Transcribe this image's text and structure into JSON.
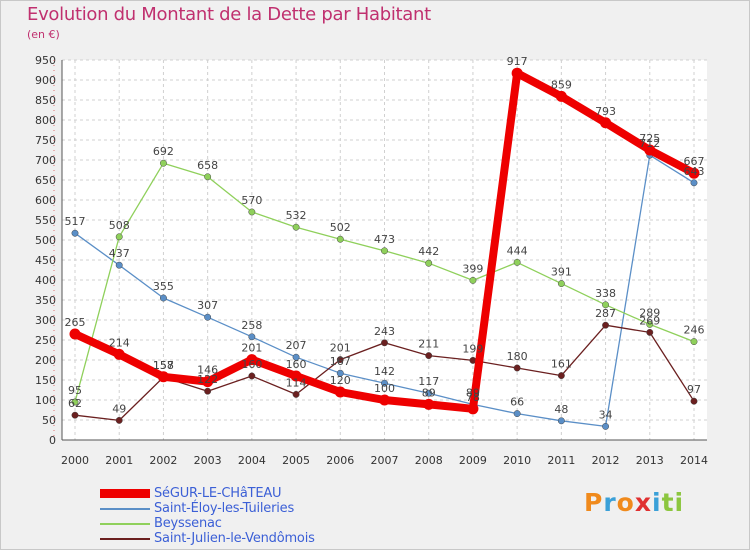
{
  "header": {
    "title": "Evolution du Montant de la Dette par Habitant",
    "subtitle": "(en €)"
  },
  "logo": {
    "letters": [
      "P",
      "r",
      "o",
      "x",
      "i",
      "t",
      "i"
    ],
    "colors": [
      "#f08a1c",
      "#3aa0d8",
      "#f08a1c",
      "#e03030",
      "#3aa0d8",
      "#8cc63f",
      "#8cc63f"
    ]
  },
  "chart_data": {
    "type": "line",
    "title": "Evolution du Montant de la Dette par Habitant",
    "ylabel": "(en €)",
    "xlabel": "",
    "x": [
      2000,
      2001,
      2002,
      2003,
      2004,
      2005,
      2006,
      2007,
      2008,
      2009,
      2010,
      2011,
      2012,
      2013,
      2014
    ],
    "ylim": [
      0,
      950
    ],
    "yticks": [
      0,
      50,
      100,
      150,
      200,
      250,
      300,
      350,
      400,
      450,
      500,
      550,
      600,
      650,
      700,
      750,
      800,
      850,
      900,
      950
    ],
    "grid": true,
    "legend_position": "bottom-left",
    "series": [
      {
        "name": "SéGUR-LE-CHâTEAU",
        "color": "#ee0000",
        "highlight": true,
        "values": [
          265,
          214,
          158,
          146,
          201,
          160,
          120,
          100,
          89,
          78,
          917,
          859,
          793,
          725,
          667
        ]
      },
      {
        "name": "Saint-Éloy-les-Tuileries",
        "color": "#5b8fc7",
        "values": [
          517,
          437,
          355,
          307,
          258,
          207,
          167,
          142,
          117,
          89,
          66,
          48,
          34,
          712,
          643
        ]
      },
      {
        "name": "Beyssenac",
        "color": "#8fd05b",
        "values": [
          95,
          508,
          692,
          658,
          570,
          532,
          502,
          473,
          442,
          399,
          444,
          391,
          338,
          289,
          246
        ]
      },
      {
        "name": "Saint-Julien-le-Vendômois",
        "color": "#6b2020",
        "values": [
          62,
          49,
          157,
          122,
          160,
          114,
          201,
          243,
          211,
          199,
          180,
          161,
          287,
          269,
          97
        ]
      }
    ]
  }
}
